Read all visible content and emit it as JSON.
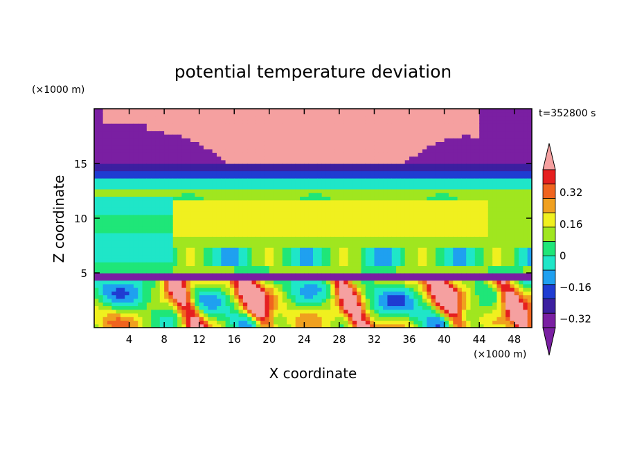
{
  "chart_data": {
    "type": "heatmap",
    "title": "potential temperature deviation",
    "xlabel": "X coordinate",
    "ylabel": "Z coordinate",
    "x_unit": "(×1000 m)",
    "y_unit": "(×1000 m)",
    "time_label": "t=352800 s",
    "xlim": [
      0,
      50
    ],
    "ylim": [
      0,
      20
    ],
    "x_ticks": [
      4,
      8,
      12,
      16,
      20,
      24,
      28,
      32,
      36,
      40,
      44,
      48
    ],
    "y_ticks": [
      5,
      10,
      15
    ],
    "colorbar": {
      "levels": [
        -0.4,
        -0.32,
        -0.24,
        -0.16,
        -0.08,
        0,
        0.08,
        0.16,
        0.24,
        0.32,
        0.4
      ],
      "labeled_ticks": [
        "0.32",
        "0.16",
        "0",
        "−0.16",
        "−0.32"
      ],
      "labeled_values": [
        0.32,
        0.16,
        0,
        -0.16,
        -0.32
      ],
      "colors": [
        "#7a1fa2",
        "#3c1fa0",
        "#1f3cd2",
        "#1fa0f0",
        "#1fe6c8",
        "#1fe678",
        "#a0e61f",
        "#f0f01f",
        "#f0a01f",
        "#f0641f",
        "#e61f1f"
      ],
      "under_color": "#7a1fa2",
      "over_color": "#f5a0a0"
    }
  }
}
